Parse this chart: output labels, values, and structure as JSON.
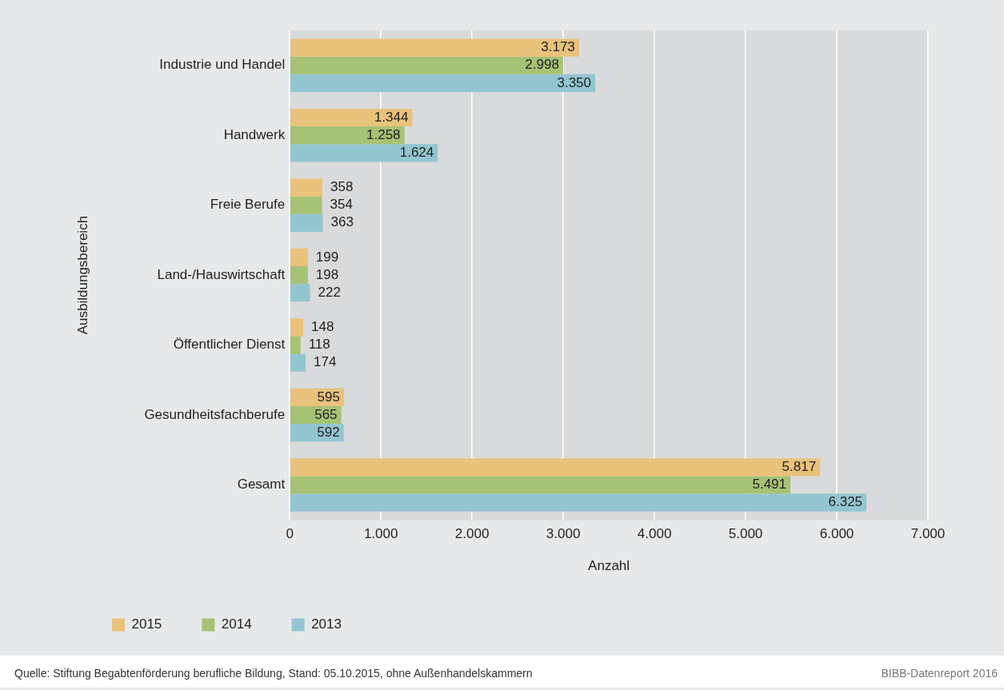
{
  "chart_data": {
    "type": "bar",
    "orientation": "horizontal",
    "xlabel": "Anzahl",
    "ylabel": "Ausbildungsbereich",
    "categories": [
      "Industrie und Handel",
      "Handwerk",
      "Freie Berufe",
      "Land-/Hauswirtschaft",
      "Öffentlicher Dienst",
      "Gesundheitsfachberufe",
      "Gesamt"
    ],
    "series": [
      {
        "name": "2015",
        "color": "#e9c27b",
        "values": [
          3173,
          1344,
          358,
          199,
          148,
          595,
          5817
        ],
        "value_labels": [
          "3.173",
          "1.344",
          "358",
          "199",
          "148",
          "595",
          "5.817"
        ]
      },
      {
        "name": "2014",
        "color": "#a6c274",
        "values": [
          2998,
          1258,
          354,
          198,
          118,
          565,
          5491
        ],
        "value_labels": [
          "2.998",
          "1.258",
          "354",
          "198",
          "118",
          "565",
          "5.491"
        ]
      },
      {
        "name": "2013",
        "color": "#93c5d0",
        "values": [
          3350,
          1624,
          363,
          222,
          174,
          592,
          6325
        ],
        "value_labels": [
          "3.350",
          "1.624",
          "363",
          "222",
          "174",
          "592",
          "6.325"
        ]
      }
    ],
    "xlim": [
      0,
      7000
    ],
    "xticks": [
      0,
      {
        "value": 1000,
        "label": "1.000"
      },
      {
        "value": 2000,
        "label": "2.000"
      },
      {
        "value": 3000,
        "label": "3.000"
      },
      {
        "value": 4000,
        "label": "4.000"
      },
      {
        "value": 5000,
        "label": "5.000"
      },
      {
        "value": 6000,
        "label": "6.000"
      },
      {
        "value": 7000,
        "label": "7.000"
      }
    ],
    "grid": "x",
    "legend": "bottom",
    "annotations": [
      "Quelle: Stiftung Begabtenförderung berufliche Bildung, Stand: 05.10.2015, ohne Außenhandelskammern",
      "BIBB-Datenreport 2016"
    ]
  }
}
